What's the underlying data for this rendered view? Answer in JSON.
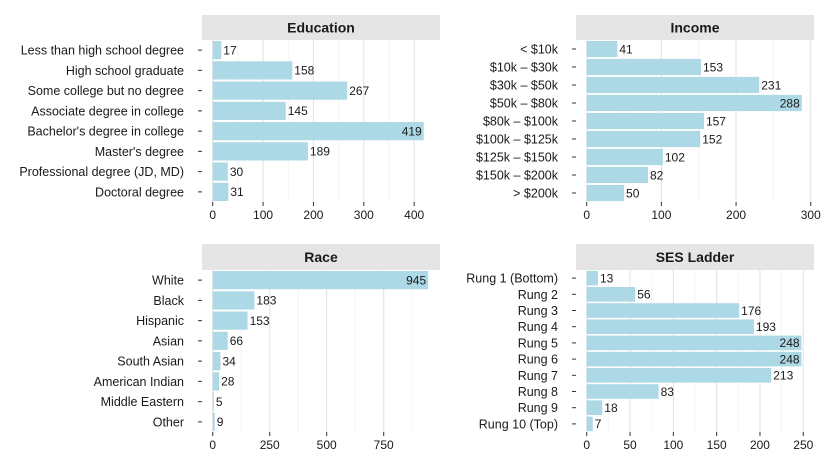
{
  "chart_data": [
    {
      "type": "bar",
      "orientation": "horizontal",
      "title": "Education",
      "categories": [
        "Less than high school degree",
        "High school graduate",
        "Some college but no degree",
        "Associate degree in college",
        "Bachelor's degree in college",
        "Master's degree",
        "Professional degree (JD, MD)",
        "Doctoral degree"
      ],
      "values": [
        17,
        158,
        267,
        145,
        419,
        189,
        30,
        31
      ],
      "xlim": [
        0,
        430
      ],
      "ticks": [
        0,
        100,
        200,
        300,
        400
      ],
      "grid": true
    },
    {
      "type": "bar",
      "orientation": "horizontal",
      "title": "Income",
      "categories": [
        "< $10k",
        "$10k – $30k",
        "$30k – $50k",
        "$50k – $80k",
        "$80k – $100k",
        "$100k – $125k",
        "$125k – $150k",
        "$150k – $200k",
        "> $200k"
      ],
      "values": [
        41,
        153,
        231,
        288,
        157,
        152,
        102,
        82,
        50
      ],
      "xlim": [
        0,
        290
      ],
      "ticks": [
        0,
        100,
        200,
        300
      ],
      "grid": true
    },
    {
      "type": "bar",
      "orientation": "horizontal",
      "title": "Race",
      "categories": [
        "White",
        "Black",
        "Hispanic",
        "Asian",
        "South Asian",
        "American Indian",
        "Middle Eastern",
        "Other"
      ],
      "values": [
        945,
        183,
        153,
        66,
        34,
        28,
        5,
        9
      ],
      "xlim": [
        0,
        950
      ],
      "ticks": [
        0,
        250,
        500,
        750
      ],
      "grid": true
    },
    {
      "type": "bar",
      "orientation": "horizontal",
      "title": "SES Ladder",
      "categories": [
        "Rung 1 (Bottom)",
        "Rung 2",
        "Rung 3",
        "Rung 4",
        "Rung 5",
        "Rung 6",
        "Rung 7",
        "Rung 8",
        "Rung 9",
        "Rung 10 (Top)"
      ],
      "values": [
        13,
        56,
        176,
        193,
        248,
        248,
        213,
        83,
        18,
        7
      ],
      "xlim": [
        0,
        250
      ],
      "ticks": [
        0,
        50,
        100,
        150,
        200,
        250
      ],
      "grid": true
    }
  ]
}
